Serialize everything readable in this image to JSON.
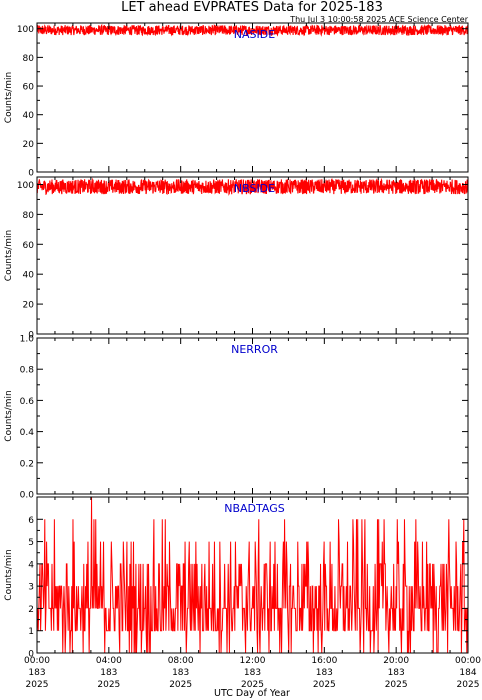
{
  "chart_data": {
    "title": "LET ahead EVPRATES Data for 2025-183",
    "subtitle": "Thu Jul  3 10:00:58 2025 ACE Science Center",
    "xlabel": "UTC Day of Year",
    "ylabel": "Counts/min",
    "x_range_hours": [
      0,
      24
    ],
    "x_ticks": [
      {
        "time": "00:00",
        "doy": "183",
        "year": "2025"
      },
      {
        "time": "04:00",
        "doy": "183",
        "year": "2025"
      },
      {
        "time": "08:00",
        "doy": "183",
        "year": "2025"
      },
      {
        "time": "12:00",
        "doy": "183",
        "year": "2025"
      },
      {
        "time": "16:00",
        "doy": "183",
        "year": "2025"
      },
      {
        "time": "20:00",
        "doy": "183",
        "year": "2025"
      },
      {
        "time": "00:00",
        "doy": "184",
        "year": "2025"
      }
    ],
    "line_color": "#ff0000",
    "panel_label_color": "#0000cc",
    "panels": [
      {
        "name": "NASIDE",
        "type": "line",
        "ylim": [
          0,
          104
        ],
        "yticks": [
          0,
          20,
          40,
          60,
          80,
          100
        ],
        "ytick_labels": [
          "0",
          "20",
          "40",
          "60",
          "80",
          "100"
        ],
        "series": {
          "base": 99,
          "amplitude": 3.5,
          "n_points": 1440
        }
      },
      {
        "name": "NBSIDE",
        "type": "line",
        "ylim": [
          0,
          105
        ],
        "yticks": [
          0,
          20,
          40,
          60,
          80,
          100
        ],
        "ytick_labels": [
          "0",
          "20",
          "40",
          "60",
          "80",
          "100"
        ],
        "series": {
          "base": 98.5,
          "amplitude": 5,
          "n_points": 1440
        }
      },
      {
        "name": "NERROR",
        "type": "line",
        "ylim": [
          0,
          1
        ],
        "yticks": [
          0,
          0.2,
          0.4,
          0.6,
          0.8,
          1.0
        ],
        "ytick_labels": [
          "0.0",
          "0.2",
          "0.4",
          "0.6",
          "0.8",
          "1.0"
        ],
        "series": {
          "constant": 0,
          "n_points": 1440
        }
      },
      {
        "name": "NBADTAGS",
        "type": "line",
        "ylim": [
          0,
          7
        ],
        "yticks": [
          0,
          1,
          2,
          3,
          4,
          5,
          6
        ],
        "ytick_labels": [
          "0",
          "1",
          "2",
          "3",
          "4",
          "5",
          "6"
        ],
        "series": {
          "description": "integer counts per minute, mostly 0-4, occasional 5-6, one spike to 7 near 03:00",
          "n_points": 720,
          "distribution": [
            {
              "value": 0,
              "weight": 8
            },
            {
              "value": 1,
              "weight": 22
            },
            {
              "value": 2,
              "weight": 30
            },
            {
              "value": 3,
              "weight": 20
            },
            {
              "value": 4,
              "weight": 12
            },
            {
              "value": 5,
              "weight": 5
            },
            {
              "value": 6,
              "weight": 3
            }
          ],
          "max_spike": {
            "hour": 3.05,
            "value": 7
          }
        }
      }
    ]
  }
}
